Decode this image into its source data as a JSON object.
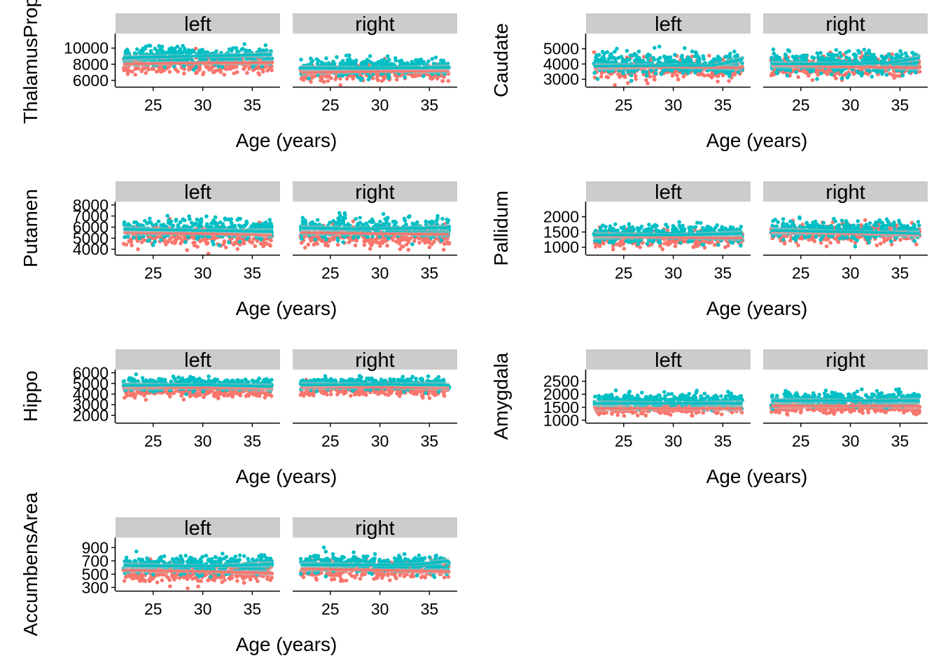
{
  "colors": {
    "group_a": "#F8766D",
    "group_b": "#00BFC4",
    "ribbon": "#BEBEBE",
    "strip": "#CCCCCC",
    "axis": "#000000"
  },
  "chart_data": [
    {
      "type": "scatter",
      "ylabel": "ThalamusProp",
      "xlabel": "Age (years)",
      "facets": [
        "left",
        "right"
      ],
      "x_ticks": [
        25,
        30,
        35
      ],
      "y_ticks": [
        6000,
        8000,
        10000
      ],
      "xlim": [
        21.2,
        37.8
      ],
      "ylim": [
        5200,
        11800
      ],
      "x_range": [
        22,
        37
      ],
      "grid": false,
      "legend": "none",
      "series": [
        {
          "color_key": "group_a",
          "panels": [
            {
              "mean": 8000,
              "spread": 850
            },
            {
              "mean": 7000,
              "spread": 800
            }
          ],
          "smooth": [
            [
              [
                22,
                8050
              ],
              [
                29,
                8150
              ],
              [
                37,
                8200
              ]
            ],
            [
              [
                22,
                7000
              ],
              [
                29,
                7100
              ],
              [
                37,
                7200
              ]
            ]
          ]
        },
        {
          "color_key": "group_b",
          "panels": [
            {
              "mean": 9000,
              "spread": 950
            },
            {
              "mean": 7600,
              "spread": 850
            }
          ],
          "smooth": [
            [
              [
                22,
                8800
              ],
              [
                29,
                9000
              ],
              [
                37,
                9200
              ]
            ],
            [
              [
                22,
                7500
              ],
              [
                30,
                7500
              ],
              [
                37,
                7600
              ]
            ]
          ]
        }
      ]
    },
    {
      "type": "scatter",
      "ylabel": "Caudate",
      "xlabel": "Age (years)",
      "facets": [
        "left",
        "right"
      ],
      "x_ticks": [
        25,
        30,
        35
      ],
      "y_ticks": [
        3000,
        4000,
        5000
      ],
      "xlim": [
        21.2,
        37.8
      ],
      "ylim": [
        2500,
        6000
      ],
      "x_range": [
        22,
        37
      ],
      "grid": false,
      "legend": "none",
      "series": [
        {
          "color_key": "group_a",
          "panels": [
            {
              "mean": 3700,
              "spread": 550
            },
            {
              "mean": 3800,
              "spread": 550
            }
          ],
          "smooth": [
            [
              [
                22,
                3750
              ],
              [
                30,
                3800
              ],
              [
                37,
                3750
              ]
            ],
            [
              [
                22,
                3900
              ],
              [
                30,
                3800
              ],
              [
                37,
                3750
              ]
            ]
          ]
        },
        {
          "color_key": "group_b",
          "panels": [
            {
              "mean": 4000,
              "spread": 600
            },
            {
              "mean": 4100,
              "spread": 600
            }
          ],
          "smooth": [
            [
              [
                22,
                3850
              ],
              [
                30,
                3900
              ],
              [
                34,
                3900
              ],
              [
                37,
                4300
              ]
            ],
            [
              [
                22,
                4000
              ],
              [
                30,
                4000
              ],
              [
                34,
                4100
              ],
              [
                37,
                4400
              ]
            ]
          ]
        }
      ]
    },
    {
      "type": "scatter",
      "ylabel": "Putamen",
      "xlabel": "Age (years)",
      "facets": [
        "left",
        "right"
      ],
      "x_ticks": [
        25,
        30,
        35
      ],
      "y_ticks": [
        4000,
        5000,
        6000,
        7000,
        8000
      ],
      "xlim": [
        21.2,
        37.8
      ],
      "ylim": [
        3500,
        8300
      ],
      "x_range": [
        22,
        37
      ],
      "grid": false,
      "legend": "none",
      "series": [
        {
          "color_key": "group_a",
          "panels": [
            {
              "mean": 5200,
              "spread": 700
            },
            {
              "mean": 5200,
              "spread": 700
            }
          ],
          "smooth": [
            [
              [
                22,
                5500
              ],
              [
                30,
                5400
              ],
              [
                37,
                5300
              ]
            ],
            [
              [
                22,
                5500
              ],
              [
                30,
                5400
              ],
              [
                37,
                5350
              ]
            ]
          ]
        },
        {
          "color_key": "group_b",
          "panels": [
            {
              "mean": 5800,
              "spread": 750
            },
            {
              "mean": 5900,
              "spread": 750
            }
          ],
          "smooth": [
            [
              [
                22,
                5800
              ],
              [
                30,
                5700
              ],
              [
                37,
                5600
              ]
            ],
            [
              [
                22,
                5900
              ],
              [
                30,
                5850
              ],
              [
                37,
                5950
              ]
            ]
          ]
        }
      ]
    },
    {
      "type": "scatter",
      "ylabel": "Pallidum",
      "xlabel": "Age (years)",
      "facets": [
        "left",
        "right"
      ],
      "x_ticks": [
        25,
        30,
        35
      ],
      "y_ticks": [
        1000,
        1500,
        2000
      ],
      "xlim": [
        21.2,
        37.8
      ],
      "ylim": [
        750,
        2500
      ],
      "x_range": [
        22,
        37
      ],
      "grid": false,
      "legend": "none",
      "series": [
        {
          "color_key": "group_a",
          "panels": [
            {
              "mean": 1300,
              "spread": 220
            },
            {
              "mean": 1450,
              "spread": 230
            }
          ],
          "smooth": [
            [
              [
                22,
                1350
              ],
              [
                30,
                1320
              ],
              [
                37,
                1300
              ]
            ],
            [
              [
                22,
                1500
              ],
              [
                30,
                1450
              ],
              [
                37,
                1400
              ]
            ]
          ]
        },
        {
          "color_key": "group_b",
          "panels": [
            {
              "mean": 1450,
              "spread": 250
            },
            {
              "mean": 1550,
              "spread": 250
            }
          ],
          "smooth": [
            [
              [
                22,
                1400
              ],
              [
                30,
                1400
              ],
              [
                37,
                1450
              ]
            ],
            [
              [
                22,
                1550
              ],
              [
                30,
                1500
              ],
              [
                37,
                1450
              ]
            ]
          ]
        }
      ]
    },
    {
      "type": "scatter",
      "ylabel": "Hippo",
      "xlabel": "Age (years)",
      "facets": [
        "left",
        "right"
      ],
      "x_ticks": [
        25,
        30,
        35
      ],
      "y_ticks": [
        2000,
        3000,
        4000,
        5000,
        6000
      ],
      "xlim": [
        21.2,
        37.8
      ],
      "ylim": [
        1300,
        6300
      ],
      "x_range": [
        22,
        37
      ],
      "grid": false,
      "legend": "none",
      "series": [
        {
          "color_key": "group_a",
          "panels": [
            {
              "mean": 4300,
              "spread": 450
            },
            {
              "mean": 4400,
              "spread": 450
            }
          ],
          "smooth": [
            [
              [
                22,
                4600
              ],
              [
                30,
                4600
              ],
              [
                37,
                4500
              ]
            ],
            [
              [
                22,
                4650
              ],
              [
                30,
                4650
              ],
              [
                37,
                4600
              ]
            ]
          ]
        },
        {
          "color_key": "group_b",
          "panels": [
            {
              "mean": 4950,
              "spread": 450
            },
            {
              "mean": 5000,
              "spread": 450
            }
          ],
          "smooth": [
            [
              [
                22,
                4800
              ],
              [
                30,
                4850
              ],
              [
                37,
                4700
              ]
            ],
            [
              [
                22,
                4850
              ],
              [
                30,
                4900
              ],
              [
                37,
                4850
              ]
            ]
          ]
        }
      ]
    },
    {
      "type": "scatter",
      "ylabel": "Amygdala",
      "xlabel": "Age (years)",
      "facets": [
        "left",
        "right"
      ],
      "x_ticks": [
        25,
        30,
        35
      ],
      "y_ticks": [
        1000,
        1500,
        2000,
        2500
      ],
      "xlim": [
        21.2,
        37.8
      ],
      "ylim": [
        900,
        2950
      ],
      "x_range": [
        22,
        37
      ],
      "grid": false,
      "legend": "none",
      "series": [
        {
          "color_key": "group_a",
          "panels": [
            {
              "mean": 1450,
              "spread": 180
            },
            {
              "mean": 1500,
              "spread": 180
            }
          ],
          "smooth": [
            [
              [
                22,
                1450
              ],
              [
                30,
                1450
              ],
              [
                37,
                1450
              ]
            ],
            [
              [
                22,
                1550
              ],
              [
                30,
                1550
              ],
              [
                37,
                1550
              ]
            ]
          ]
        },
        {
          "color_key": "group_b",
          "panels": [
            {
              "mean": 1750,
              "spread": 220
            },
            {
              "mean": 1800,
              "spread": 230
            }
          ],
          "smooth": [
            [
              [
                22,
                1650
              ],
              [
                30,
                1650
              ],
              [
                37,
                1650
              ]
            ],
            [
              [
                22,
                1750
              ],
              [
                30,
                1750
              ],
              [
                37,
                1750
              ]
            ]
          ]
        }
      ]
    },
    {
      "type": "scatter",
      "ylabel": "AccumbensArea",
      "xlabel": "Age (years)",
      "facets": [
        "left",
        "right"
      ],
      "x_ticks": [
        25,
        30,
        35
      ],
      "y_ticks": [
        300,
        500,
        700,
        900
      ],
      "xlim": [
        21.2,
        37.8
      ],
      "ylim": [
        250,
        1050
      ],
      "x_range": [
        22,
        37
      ],
      "grid": false,
      "legend": "none",
      "series": [
        {
          "color_key": "group_a",
          "panels": [
            {
              "mean": 520,
              "spread": 110
            },
            {
              "mean": 560,
              "spread": 110
            }
          ],
          "smooth": [
            [
              [
                22,
                560
              ],
              [
                30,
                540
              ],
              [
                37,
                520
              ]
            ],
            [
              [
                22,
                580
              ],
              [
                30,
                560
              ],
              [
                37,
                540
              ]
            ]
          ]
        },
        {
          "color_key": "group_b",
          "panels": [
            {
              "mean": 640,
              "spread": 110
            },
            {
              "mean": 660,
              "spread": 110
            }
          ],
          "smooth": [
            [
              [
                22,
                630
              ],
              [
                30,
                620
              ],
              [
                37,
                650
              ]
            ],
            [
              [
                22,
                640
              ],
              [
                30,
                640
              ],
              [
                34,
                650
              ],
              [
                37,
                700
              ]
            ]
          ]
        }
      ]
    }
  ]
}
